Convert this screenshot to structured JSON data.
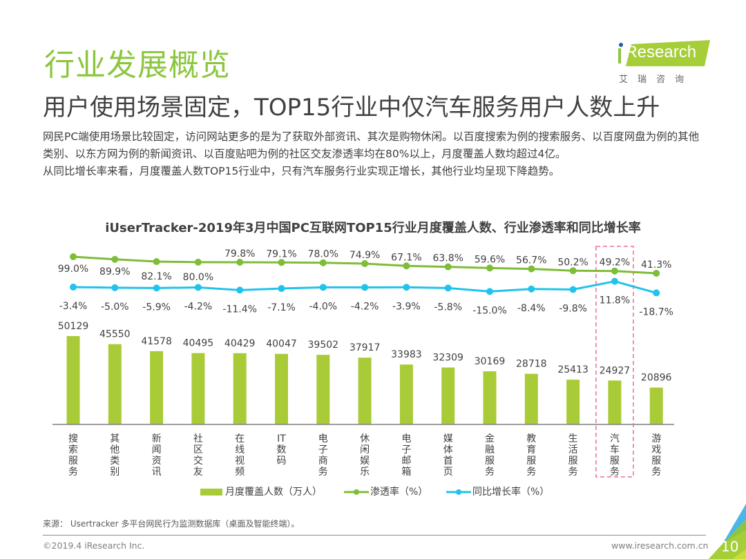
{
  "header": {
    "section_title": "行业发展概览",
    "headline": "用户使用场景固定，TOP15行业中仅汽车服务用户人数上升",
    "logo_text": "iResearch",
    "logo_cn": "艾瑞咨询"
  },
  "intro": {
    "paragraph1": "网民PC端使用场景比较固定，访问网站更多的是为了获取外部资讯、其次是购物休闲。以百度搜索为例的搜索服务、以百度网盘为例的其他类别、以东方网为例的新闻资讯、以百度贴吧为例的社区交友渗透率均在80%以上，月度覆盖人数均超过4亿。",
    "paragraph2": "从同比增长率来看，月度覆盖人数TOP15行业中，只有汽车服务行业实现正增长，其他行业均呈现下降趋势。"
  },
  "colors": {
    "brand_green": "#8cc63f",
    "bar_green": "#a9cb38",
    "line_green": "#7dbd37",
    "line_blue": "#21c2ec",
    "highlight_red": "#e8708a",
    "text": "#404040"
  },
  "chart_data": {
    "type": "bar",
    "title": "iUserTracker-2019年3月中国PC互联网TOP15行业月度覆盖人数、行业渗透率和同比增长率",
    "xlabel": "",
    "ylabel": "",
    "categories": [
      "搜索服务",
      "其他类别",
      "新闻资讯",
      "社区交友",
      "在线视频",
      "IT数码",
      "电子商务",
      "休闲娱乐",
      "电子邮箱",
      "媒体首页",
      "金融服务",
      "教育服务",
      "生活服务",
      "汽车服务",
      "游戏服务"
    ],
    "series": [
      {
        "name": "月度覆盖人数（万人）",
        "type": "bar",
        "values": [
          50129,
          45550,
          41578,
          40495,
          40429,
          40047,
          39502,
          37917,
          33983,
          32309,
          30169,
          28718,
          25413,
          24927,
          20896
        ],
        "labels": [
          "50129",
          "45550",
          "41578",
          "40495",
          "40429",
          "40047",
          "39502",
          "37917",
          "33983",
          "32309",
          "30169",
          "28718",
          "25413",
          "24927",
          "20896"
        ]
      },
      {
        "name": "渗透率（%）",
        "type": "line",
        "values": [
          99.0,
          89.9,
          82.1,
          80.0,
          79.8,
          79.1,
          78.0,
          74.9,
          67.1,
          63.8,
          59.6,
          56.7,
          50.2,
          49.2,
          41.3
        ],
        "labels": [
          "99.0%",
          "89.9%",
          "82.1%",
          "80.0%",
          "79.8%",
          "79.1%",
          "78.0%",
          "74.9%",
          "67.1%",
          "63.8%",
          "59.6%",
          "56.7%",
          "50.2%",
          "49.2%",
          "41.3%"
        ]
      },
      {
        "name": "同比增长率（%）",
        "type": "line",
        "values": [
          -3.4,
          -5.0,
          -5.9,
          -4.2,
          -11.4,
          -7.1,
          -4.0,
          -4.2,
          -3.9,
          -5.8,
          -15.0,
          -8.4,
          -9.8,
          11.8,
          -18.7
        ],
        "labels": [
          "-3.4%",
          "-5.0%",
          "-5.9%",
          "-4.2%",
          "-11.4%",
          "-7.1%",
          "-4.0%",
          "-4.2%",
          "-3.9%",
          "-5.8%",
          "-15.0%",
          "-8.4%",
          "-9.8%",
          "11.8%",
          "-18.7%"
        ]
      }
    ],
    "highlight_category": "汽车服务",
    "grid": false,
    "legend_position": "bottom"
  },
  "footer": {
    "source": "来源： Usertracker 多平台网民行为监测数据库（桌面及智能终端）。",
    "copyright": "©2019.4 iResearch Inc.",
    "website": "www.iresearch.com.cn",
    "page_number": "10"
  }
}
